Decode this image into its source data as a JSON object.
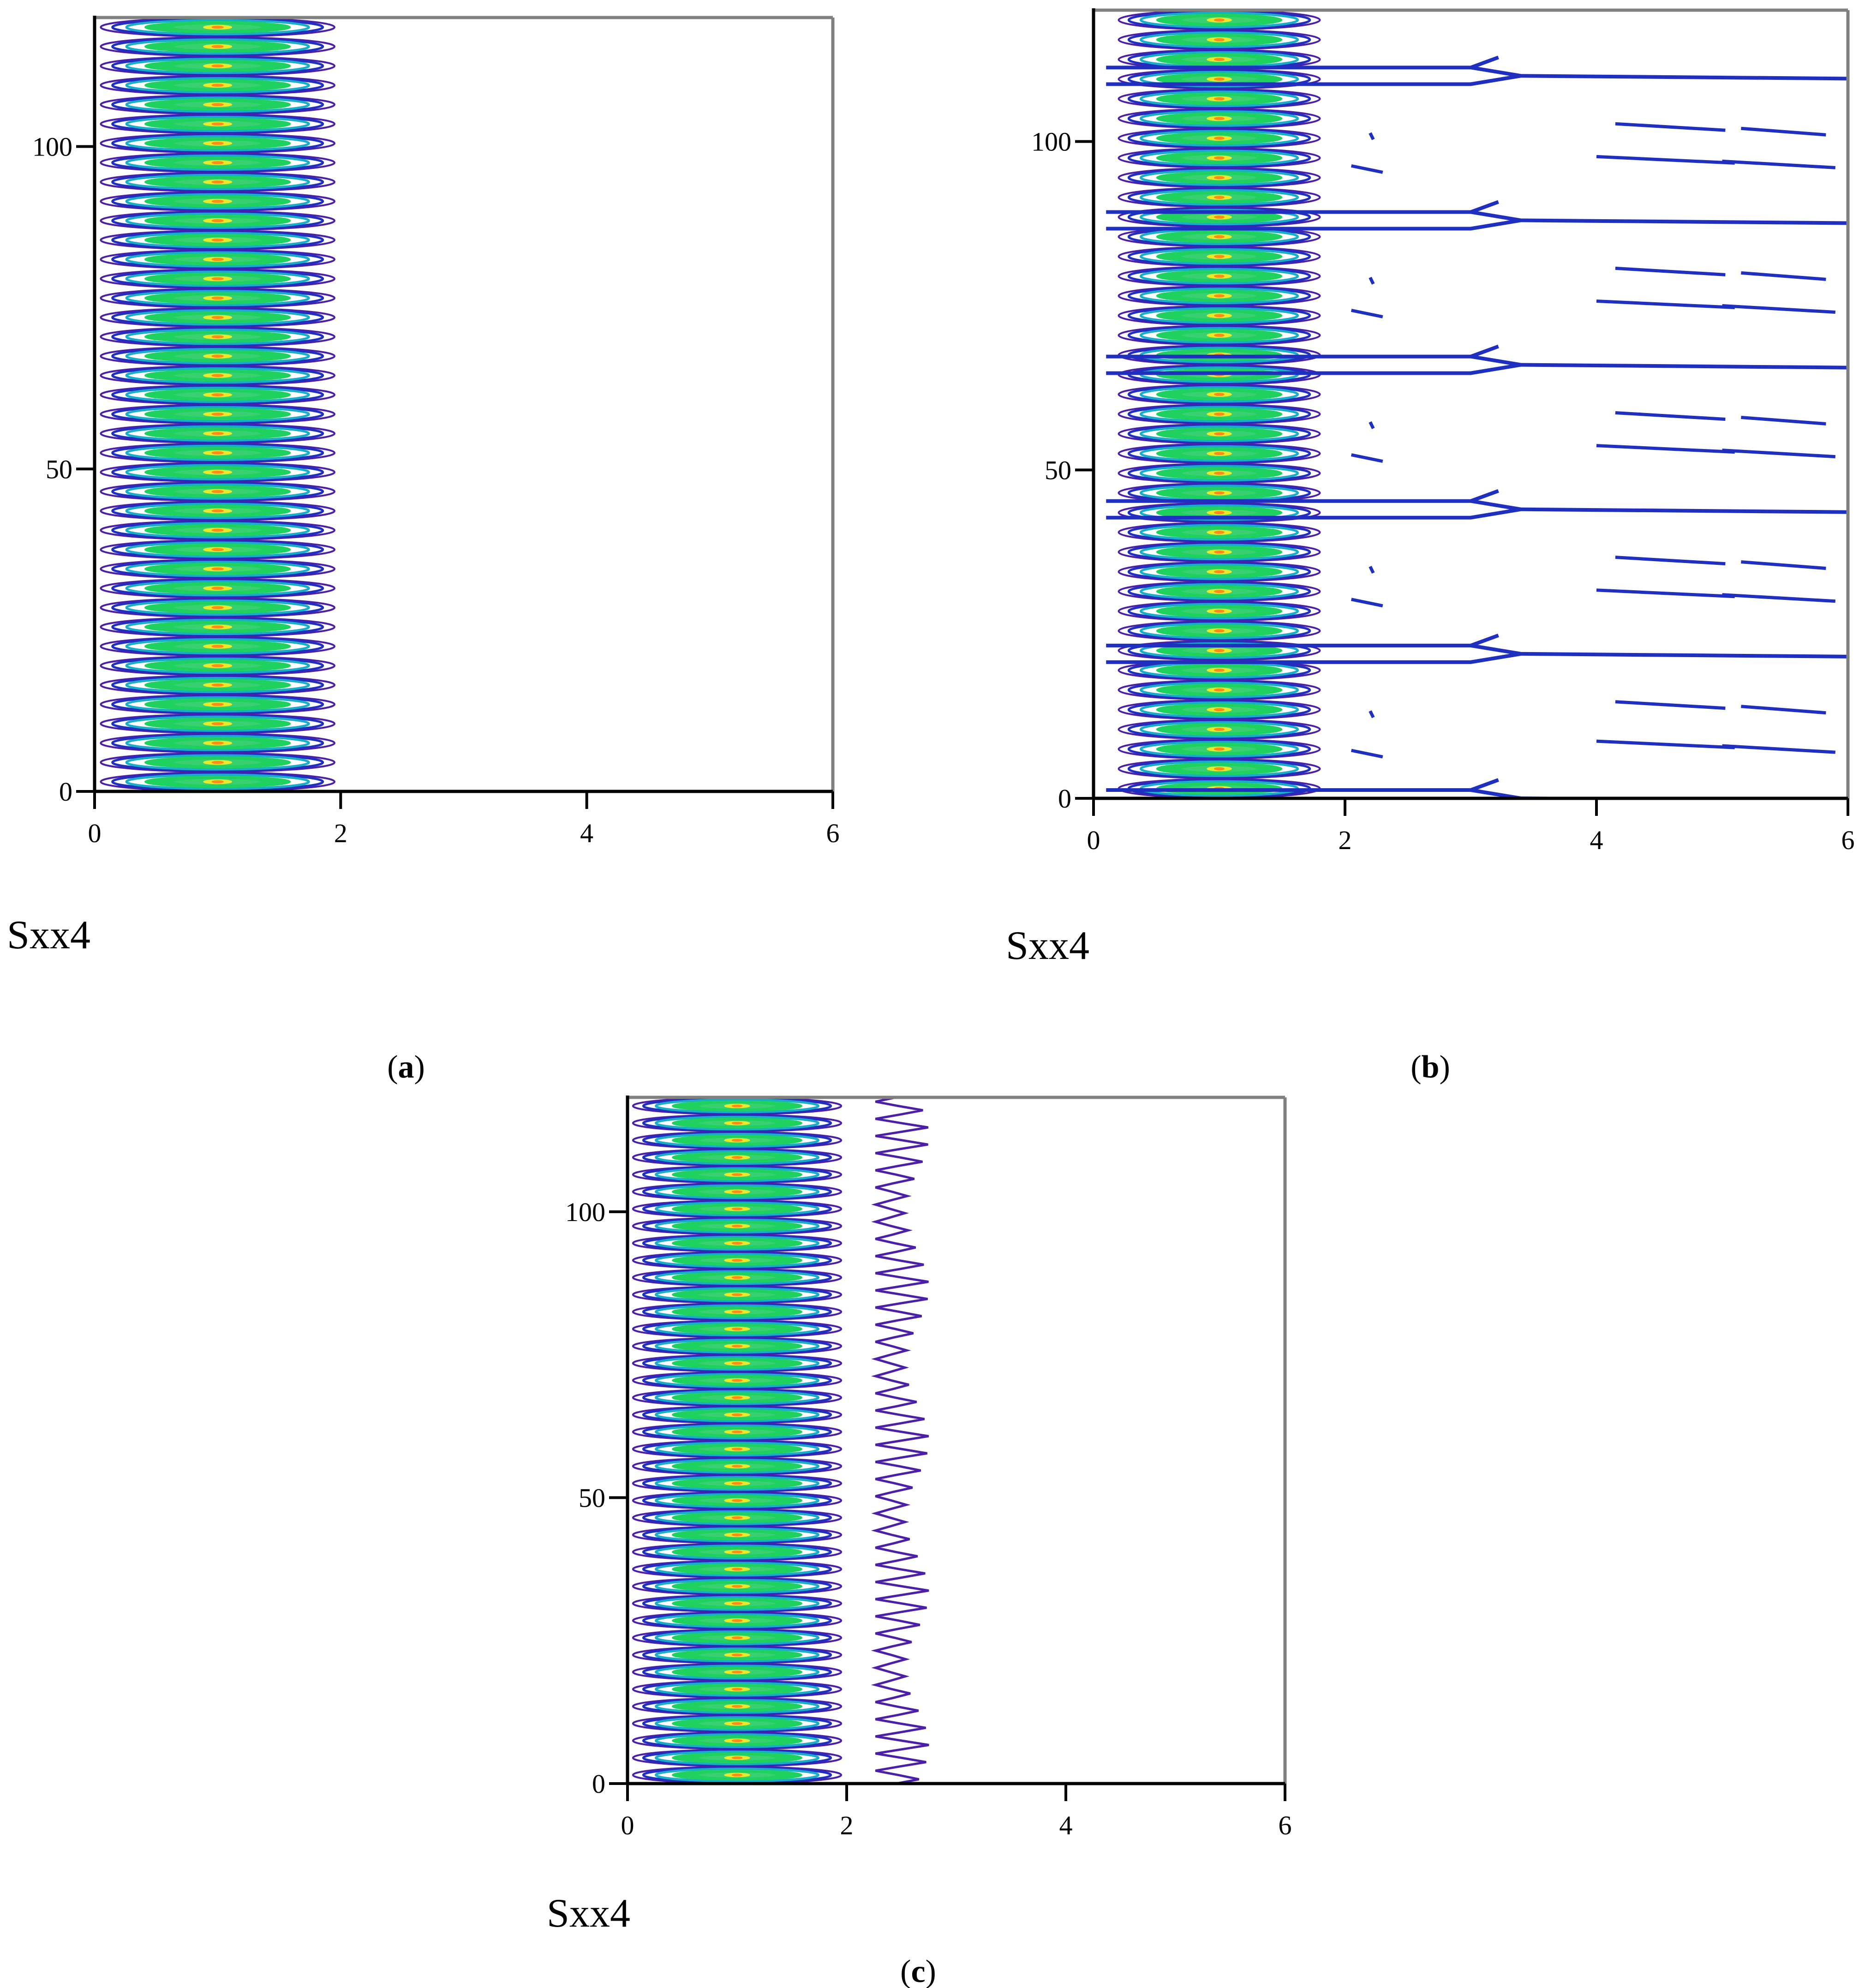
{
  "colors": {
    "outer": "#4b1fa8",
    "dark_blue": "#1f2fbf",
    "teal": "#19aec8",
    "green": "#1fd15e",
    "yellow": "#e6ea2a",
    "orange": "#ff8c1a",
    "axis": "#000000",
    "frame": "#808080"
  },
  "chart_data": [
    {
      "id": "a",
      "type": "contour",
      "panel_label": "a",
      "xlabel": "Sxx4",
      "xlim": [
        0,
        6
      ],
      "ylim": [
        0,
        120
      ],
      "xticks": [
        0,
        2,
        4,
        6
      ],
      "yticks": [
        0,
        50,
        100
      ],
      "band_count": 40,
      "core_x_range": [
        0.1,
        1.95
      ],
      "envelope_x_max": 1.95,
      "center_x": 1
    },
    {
      "id": "b",
      "type": "contour",
      "panel_label": "b",
      "xlabel": "Sxx4",
      "xlim": [
        0,
        6
      ],
      "ylim": [
        0,
        120
      ],
      "xticks": [
        0,
        2,
        4,
        6
      ],
      "yticks": [
        0,
        50,
        100
      ],
      "band_count": 40,
      "core_x_range": [
        0.3,
        1.8
      ],
      "center_x": 1,
      "long_line_y": [
        0,
        22,
        44,
        66,
        88,
        110
      ],
      "branch_x": 3,
      "short_segments_y": [
        8,
        14,
        31,
        36,
        53,
        58,
        75,
        80,
        97,
        102
      ]
    },
    {
      "id": "c",
      "type": "contour",
      "panel_label": "c",
      "xlabel": "Sxx4",
      "xlim": [
        0,
        6
      ],
      "ylim": [
        0,
        120
      ],
      "xticks": [
        0,
        2,
        4,
        6
      ],
      "yticks": [
        0,
        50,
        100
      ],
      "band_count": 40,
      "core_x_range": [
        0.1,
        1.95
      ],
      "envelope_x_max": 2.75,
      "center_x": 1
    }
  ]
}
